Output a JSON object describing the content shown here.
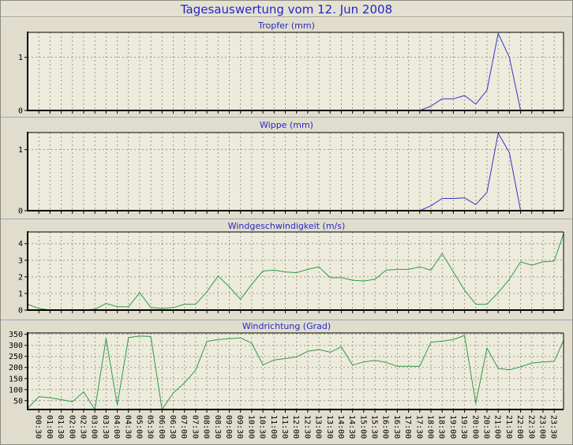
{
  "page": {
    "title": "Tagesauswertung vom 12. Jun 2008"
  },
  "colors": {
    "page_bg": "#e0ddcd",
    "plot_bg": "#edebdb",
    "grid": "#9c9c8c",
    "axis": "#000000",
    "title_blue": "#2426c8",
    "rain_line_blue": "#3535c8",
    "wind_line_green": "#2f9a48",
    "divider_blue_grey": "#9aa6bd"
  },
  "x_axis": {
    "first_label_minute": 30,
    "tick_step_minutes": 30,
    "domain_minutes": [
      0,
      1435
    ],
    "labels": [
      "00:30",
      "01:00",
      "01:30",
      "02:00",
      "02:30",
      "03:00",
      "03:30",
      "04:00",
      "04:30",
      "05:00",
      "05:30",
      "06:00",
      "06:30",
      "07:00",
      "07:30",
      "08:00",
      "08:30",
      "09:00",
      "09:30",
      "10:00",
      "10:30",
      "11:00",
      "11:30",
      "12:00",
      "12:30",
      "13:00",
      "13:30",
      "14:00",
      "14:30",
      "15:00",
      "15:30",
      "16:00",
      "16:30",
      "17:00",
      "17:30",
      "18:00",
      "18:30",
      "19:00",
      "19:30",
      "20:00",
      "20:30",
      "21:00",
      "21:30",
      "22:00",
      "22:30",
      "23:00",
      "23:30"
    ]
  },
  "chart_data": [
    {
      "id": "tropfer",
      "type": "line",
      "title": "Tropfer (mm)",
      "line_color": "#3535c8",
      "y_ticks": [
        0,
        1
      ],
      "ylim": [
        0,
        1.47
      ],
      "x_step_minutes": 30,
      "values": [
        0,
        0,
        0,
        0,
        0,
        0,
        0,
        0,
        0,
        0,
        0,
        0,
        0,
        0,
        0,
        0,
        0,
        0,
        0,
        0,
        0,
        0,
        0,
        0,
        0,
        0,
        0,
        0,
        0,
        0,
        0,
        0,
        0,
        0,
        0,
        0,
        0.08,
        0.22,
        0.22,
        0.28,
        0.12,
        0.38,
        1.45,
        1.0,
        0,
        0,
        0,
        0,
        0
      ]
    },
    {
      "id": "wippe",
      "type": "line",
      "title": "Wippe (mm)",
      "line_color": "#3535c8",
      "y_ticks": [
        0,
        1
      ],
      "ylim": [
        0,
        1.28
      ],
      "x_step_minutes": 30,
      "values": [
        0,
        0,
        0,
        0,
        0,
        0,
        0,
        0,
        0,
        0,
        0,
        0,
        0,
        0,
        0,
        0,
        0,
        0,
        0,
        0,
        0,
        0,
        0,
        0,
        0,
        0,
        0,
        0,
        0,
        0,
        0,
        0,
        0,
        0,
        0,
        0,
        0.08,
        0.2,
        0.2,
        0.21,
        0.1,
        0.3,
        1.27,
        0.95,
        0,
        0,
        0,
        0,
        0
      ]
    },
    {
      "id": "windgeschwindigkeit",
      "type": "line",
      "title": "Windgeschwindigkeit (m/s)",
      "line_color": "#2f9a48",
      "y_ticks": [
        0,
        1,
        2,
        3,
        4
      ],
      "ylim": [
        0,
        4.7
      ],
      "x_step_minutes": 30,
      "values": [
        0.35,
        0.1,
        0,
        0,
        0,
        0,
        0.05,
        0.4,
        0.2,
        0.2,
        1.05,
        0.15,
        0.1,
        0.15,
        0.35,
        0.35,
        1.1,
        2.05,
        1.4,
        0.65,
        1.55,
        2.35,
        2.4,
        2.3,
        2.25,
        2.45,
        2.6,
        1.95,
        1.95,
        1.8,
        1.75,
        1.85,
        2.4,
        2.45,
        2.45,
        2.6,
        2.4,
        3.4,
        2.3,
        1.2,
        0.35,
        0.35,
        1.05,
        1.85,
        2.9,
        2.7,
        2.9,
        2.95,
        4.6
      ]
    },
    {
      "id": "windrichtung",
      "type": "line",
      "title": "Windrichtung (Grad)",
      "line_color": "#2f9a48",
      "y_ticks": [
        50,
        100,
        150,
        200,
        250,
        300,
        350
      ],
      "ylim": [
        10,
        356
      ],
      "x_step_minutes": 30,
      "values": [
        15,
        68,
        63,
        55,
        45,
        90,
        10,
        330,
        30,
        335,
        342,
        340,
        10,
        85,
        130,
        188,
        318,
        326,
        330,
        334,
        310,
        212,
        234,
        240,
        248,
        273,
        281,
        269,
        293,
        211,
        225,
        232,
        223,
        205,
        205,
        205,
        314,
        319,
        326,
        345,
        38,
        288,
        196,
        189,
        203,
        220,
        225,
        228,
        322
      ]
    }
  ]
}
